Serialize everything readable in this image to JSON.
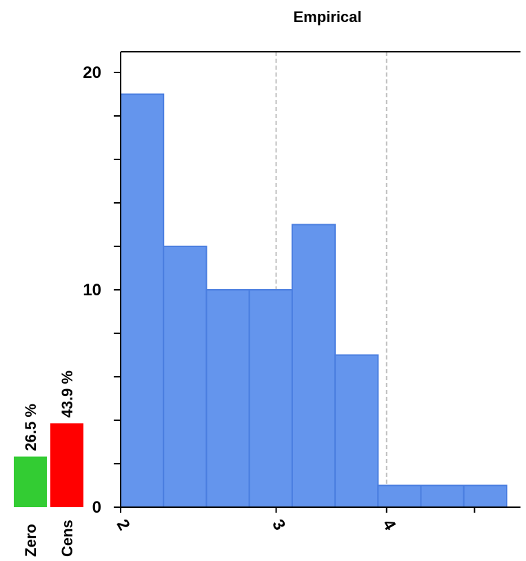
{
  "chart_data": {
    "type": "bar",
    "title": "Empirical",
    "xlabel": "",
    "ylabel": "",
    "bins": [
      {
        "x0": 2.0,
        "x1": 2.4,
        "count": 19
      },
      {
        "x0": 2.4,
        "x1": 2.8,
        "count": 12
      },
      {
        "x0": 2.8,
        "x1": 3.2,
        "count": 10
      },
      {
        "x0": 3.2,
        "x1": 3.6,
        "count": 10
      },
      {
        "x0": 3.6,
        "x1": 4.0,
        "count": 13
      },
      {
        "x0": 4.0,
        "x1": 4.4,
        "count": 7
      },
      {
        "x0": 4.4,
        "x1": 4.8,
        "count": 1
      },
      {
        "x0": 4.8,
        "x1": 5.2,
        "count": 1
      },
      {
        "x0": 5.2,
        "x1": 5.6,
        "count": 1
      }
    ],
    "xlim": [
      2.0,
      5.6
    ],
    "ylim": [
      0,
      21
    ],
    "y_ticks": [
      0,
      10,
      20
    ],
    "y_minor_ticks": [
      2,
      4,
      6,
      8,
      12,
      14,
      16,
      18
    ],
    "x_ticks": [
      {
        "value": 2.0,
        "label": "2"
      },
      {
        "value": 3.45,
        "label": "3"
      },
      {
        "value": 4.48,
        "label": "4"
      },
      {
        "value": 5.3,
        "label": ""
      }
    ],
    "ref_lines": [
      3.45,
      4.48
    ],
    "grid": false,
    "side_bars": [
      {
        "name": "Zero",
        "label": "26.5 %",
        "value": 26.5,
        "color": "#33cc33"
      },
      {
        "name": "Cens",
        "label": "43.9 %",
        "value": 43.9,
        "color": "#ff0000"
      }
    ],
    "colors": {
      "bar_fill": "#6495ed",
      "bar_stroke": "#4a7ee0",
      "ref_line": "#c0c0c0"
    }
  }
}
